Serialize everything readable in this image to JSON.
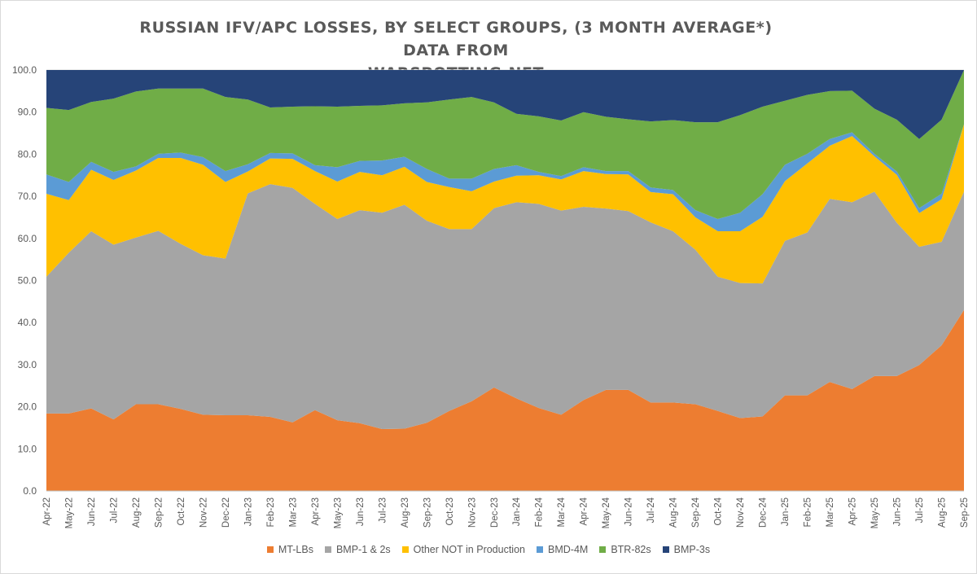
{
  "chart_data": {
    "type": "area",
    "stacked": true,
    "title": "RUSSIAN IFV/APC LOSSES, BY SELECT GROUPS, (3 MONTH AVERAGE*) DATA FROM WARSPOTTING.NET",
    "title_lines": [
      "RUSSIAN IFV/APC LOSSES, BY SELECT GROUPS, (3 MONTH AVERAGE*) DATA FROM",
      "WARSPOTTING.NET"
    ],
    "xlabel": "",
    "ylabel": "",
    "ylim": [
      0,
      100
    ],
    "y_ticks": [
      "0.0",
      "10.0",
      "20.0",
      "30.0",
      "40.0",
      "50.0",
      "60.0",
      "70.0",
      "80.0",
      "90.0",
      "100.0"
    ],
    "grid": true,
    "legend_position": "bottom",
    "categories": [
      "Apr-22",
      "May-22",
      "Jun-22",
      "Jul-22",
      "Aug-22",
      "Sep-22",
      "Oct-22",
      "Nov-22",
      "Dec-22",
      "Jan-23",
      "Feb-23",
      "Mar-23",
      "Apr-23",
      "May-23",
      "Jun-23",
      "Jul-23",
      "Aug-23",
      "Sep-23",
      "Oct-23",
      "Nov-23",
      "Dec-23",
      "Jan-24",
      "Feb-24",
      "Mar-24",
      "Apr-24",
      "May-24",
      "Jun-24",
      "Jul-24",
      "Aug-24",
      "Sep-24",
      "Oct-24",
      "Nov-24",
      "Dec-24",
      "Jan-25",
      "Feb-25",
      "Mar-25",
      "Apr-25",
      "May-25",
      "Jun-25",
      "Jul-25",
      "Aug-25",
      "Sep-25"
    ],
    "series": [
      {
        "name": "MT-LBs",
        "color": "#ED7D31",
        "values": [
          18.4,
          18.4,
          19.6,
          17.0,
          20.6,
          20.6,
          19.5,
          18.1,
          18.0,
          18.0,
          17.6,
          16.3,
          19.2,
          16.8,
          16.1,
          14.7,
          14.8,
          16.2,
          19.0,
          21.3,
          24.6,
          22.0,
          19.7,
          18.1,
          21.6,
          24.0,
          24.0,
          21.0,
          21.0,
          20.6,
          19.0,
          17.3,
          17.7,
          22.7,
          22.7,
          25.9,
          24.2,
          27.3,
          27.3,
          29.9,
          34.6,
          43.0
        ]
      },
      {
        "name": "BMP-1 & 2s",
        "color": "#A5A5A5",
        "values": [
          32.5,
          38.2,
          42.1,
          41.5,
          39.6,
          41.2,
          39.2,
          37.9,
          37.2,
          52.7,
          55.3,
          55.7,
          49.0,
          47.8,
          50.6,
          51.4,
          53.2,
          48.0,
          43.2,
          40.9,
          42.6,
          46.6,
          48.5,
          48.5,
          45.9,
          43.1,
          42.5,
          42.8,
          40.7,
          36.7,
          31.9,
          32.1,
          31.6,
          36.7,
          38.7,
          43.5,
          44.4,
          43.8,
          36.4,
          28.1,
          24.6,
          28.1
        ]
      },
      {
        "name": "Other NOT in Production",
        "color": "#FFC000",
        "values": [
          19.7,
          12.5,
          14.6,
          15.4,
          15.9,
          17.3,
          20.4,
          21.5,
          18.2,
          5.2,
          6.1,
          6.9,
          7.8,
          8.9,
          9.1,
          8.9,
          9.0,
          9.2,
          10.0,
          9.0,
          6.3,
          6.3,
          6.8,
          7.4,
          8.5,
          8.2,
          8.7,
          7.2,
          8.8,
          7.7,
          10.8,
          12.3,
          15.8,
          14.2,
          16.4,
          12.6,
          15.7,
          8.4,
          11.4,
          8.0,
          10.1,
          16.0
        ]
      },
      {
        "name": "BMD-4M",
        "color": "#5B9BD5",
        "values": [
          4.6,
          4.3,
          1.9,
          1.9,
          1.0,
          1.0,
          1.3,
          1.8,
          2.6,
          1.7,
          1.3,
          1.3,
          1.4,
          3.4,
          2.6,
          3.5,
          2.4,
          3.1,
          2.0,
          3.0,
          3.0,
          2.5,
          0.8,
          0.8,
          0.9,
          0.7,
          0.8,
          1.1,
          1.0,
          1.7,
          2.9,
          4.4,
          5.4,
          3.9,
          2.3,
          1.6,
          0.9,
          0.6,
          0.8,
          1.2,
          1.3,
          0.0
        ]
      },
      {
        "name": "BTR-82s",
        "color": "#70AD47",
        "values": [
          15.8,
          17.1,
          14.2,
          17.4,
          17.8,
          15.5,
          15.2,
          16.3,
          17.6,
          15.4,
          10.8,
          11.1,
          14.0,
          14.4,
          13.1,
          13.1,
          12.7,
          15.8,
          18.8,
          19.4,
          15.8,
          12.2,
          13.2,
          13.2,
          13.1,
          12.9,
          12.3,
          15.7,
          16.6,
          20.9,
          23.0,
          23.2,
          20.8,
          15.2,
          14.0,
          11.4,
          9.9,
          10.7,
          12.3,
          16.4,
          17.6,
          12.9
        ]
      },
      {
        "name": "BMP-3s",
        "color": "#264478",
        "values": [
          9.0,
          9.5,
          7.6,
          6.8,
          5.1,
          4.4,
          4.4,
          4.4,
          6.4,
          7.0,
          8.9,
          8.7,
          8.6,
          8.7,
          8.5,
          8.4,
          7.9,
          7.7,
          7.0,
          6.4,
          7.7,
          10.4,
          11.0,
          12.0,
          10.0,
          11.1,
          11.7,
          12.2,
          11.9,
          12.4,
          12.6,
          10.7,
          8.7,
          7.3,
          5.9,
          5.0,
          4.9,
          9.2,
          11.8,
          16.4,
          11.8,
          0.0
        ]
      }
    ]
  }
}
